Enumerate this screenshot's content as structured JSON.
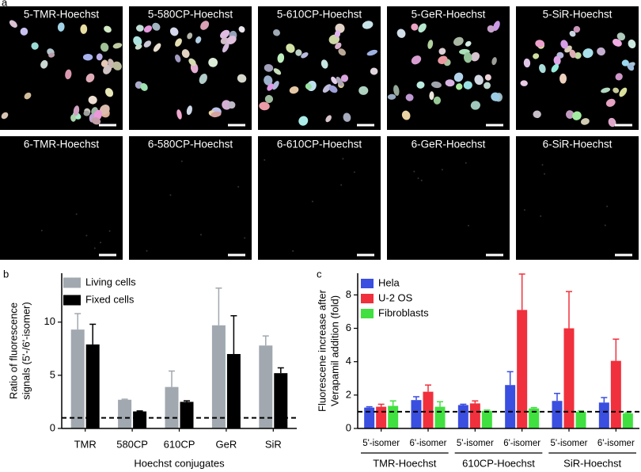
{
  "image_panels": {
    "label": "a",
    "rows": [
      [
        "5-TMR-Hoechst",
        "5-580CP-Hoechst",
        "5-610CP-Hoechst",
        "5-GeR-Hoechst",
        "5-SiR-Hoechst"
      ],
      [
        "6-TMR-Hoechst",
        "6-580CP-Hoechst",
        "6-610CP-Hoechst",
        "6-GeR-Hoechst",
        "6-SiR-Hoechst"
      ]
    ]
  },
  "chart_data": [
    {
      "type": "bar",
      "label": "b",
      "ylabel": [
        "Ratio of fluorescence",
        "signals (5'-/6'-isomer)"
      ],
      "xlabel": "Hoechst conjugates",
      "categories": [
        "TMR",
        "580CP",
        "610CP",
        "GeR",
        "SiR"
      ],
      "series": [
        {
          "name": "Living cells",
          "color": "#a1a8af",
          "values": [
            9.3,
            2.7,
            3.9,
            9.7,
            7.8
          ],
          "errors": [
            1.5,
            0.05,
            1.5,
            3.5,
            0.9
          ]
        },
        {
          "name": "Fixed cells",
          "color": "#000000",
          "values": [
            7.9,
            1.6,
            2.5,
            7.0,
            5.2
          ],
          "errors": [
            1.9,
            0.05,
            0.1,
            3.6,
            0.5
          ]
        }
      ],
      "ylim": [
        0,
        14.6
      ],
      "yticks": [
        0,
        5,
        10
      ],
      "reference_line": 1,
      "legend": "top-left"
    },
    {
      "type": "bar",
      "label": "c",
      "ylabel": [
        "Fluorescene increase after",
        "Verapamil addition (fold)"
      ],
      "categories": [
        "5'-isomer",
        "6'-isomer",
        "5'-isomer",
        "6'-isomer",
        "5'-isomer",
        "6'-isomer"
      ],
      "groups": [
        "TMR-Hoechst",
        "610CP-Hoechst",
        "SiR-Hoechst"
      ],
      "series": [
        {
          "name": "Hela",
          "color": "#3a4ee0",
          "values": [
            1.25,
            1.7,
            1.4,
            2.6,
            1.65,
            1.55
          ],
          "errors": [
            0.05,
            0.2,
            0.05,
            0.8,
            0.45,
            0.3
          ]
        },
        {
          "name": "U-2 OS",
          "color": "#f0303c",
          "values": [
            1.3,
            2.2,
            1.5,
            7.1,
            6.0,
            4.05
          ],
          "errors": [
            0.15,
            0.4,
            0.15,
            2.15,
            2.2,
            1.3
          ]
        },
        {
          "name": "Fibroblasts",
          "color": "#40e040",
          "values": [
            1.35,
            1.3,
            1.05,
            1.2,
            1.0,
            0.9
          ],
          "errors": [
            0.3,
            0.3,
            0.05,
            0.05,
            0.05,
            0.05
          ]
        }
      ],
      "ylim": [
        0,
        9.3
      ],
      "yticks": [
        0,
        2,
        4,
        6,
        8
      ],
      "reference_line": 1,
      "legend": "top-left"
    }
  ]
}
